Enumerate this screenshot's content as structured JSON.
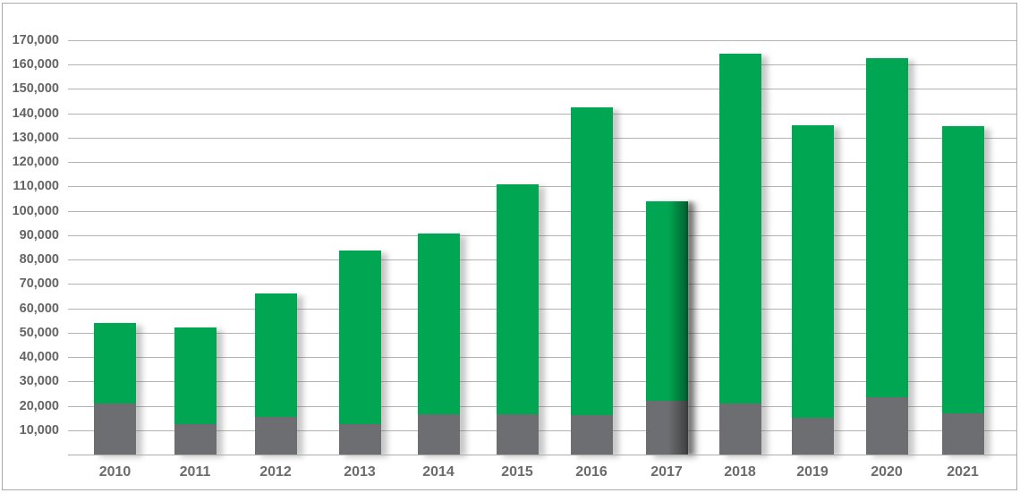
{
  "chart_data": {
    "type": "bar",
    "stacked": true,
    "title": "",
    "xlabel": "",
    "ylabel": "",
    "legend": "none",
    "grid": true,
    "categories": [
      "2010",
      "2011",
      "2012",
      "2013",
      "2014",
      "2015",
      "2016",
      "2017",
      "2018",
      "2019",
      "2020",
      "2021"
    ],
    "series": [
      {
        "name": "bottom-segment-gray",
        "color": "#6d6e71",
        "values": [
          21000,
          12500,
          15500,
          12500,
          16500,
          16500,
          16000,
          22000,
          21000,
          15000,
          23500,
          17000
        ]
      },
      {
        "name": "top-segment-green",
        "color": "#00a651",
        "values": [
          33000,
          39500,
          50500,
          71000,
          74000,
          94500,
          126500,
          82000,
          143500,
          120000,
          139000,
          117500
        ]
      }
    ],
    "stack_totals": [
      54000,
      52000,
      66000,
      83500,
      90500,
      111000,
      142500,
      104000,
      164500,
      135000,
      162500,
      134500
    ],
    "y_axis": {
      "min": 0,
      "max": 175000,
      "tick_interval": 10000,
      "tick_labels": [
        "10,000",
        "20,000",
        "30,000",
        "40,000",
        "50,000",
        "60,000",
        "70,000",
        "80,000",
        "90,000",
        "100,000",
        "110,000",
        "120,000",
        "130,000",
        "140,000",
        "150,000",
        "160,000",
        "170,000"
      ]
    },
    "effects": {
      "bar_drop_shadow": true,
      "strong_shadow_category": "2017"
    }
  },
  "colors": {
    "green": "#00a651",
    "gray": "#6d6e71",
    "gridline": "#b3b3b3",
    "axis_label": "#646464",
    "frame_border": "#ababab",
    "background": "#ffffff"
  }
}
